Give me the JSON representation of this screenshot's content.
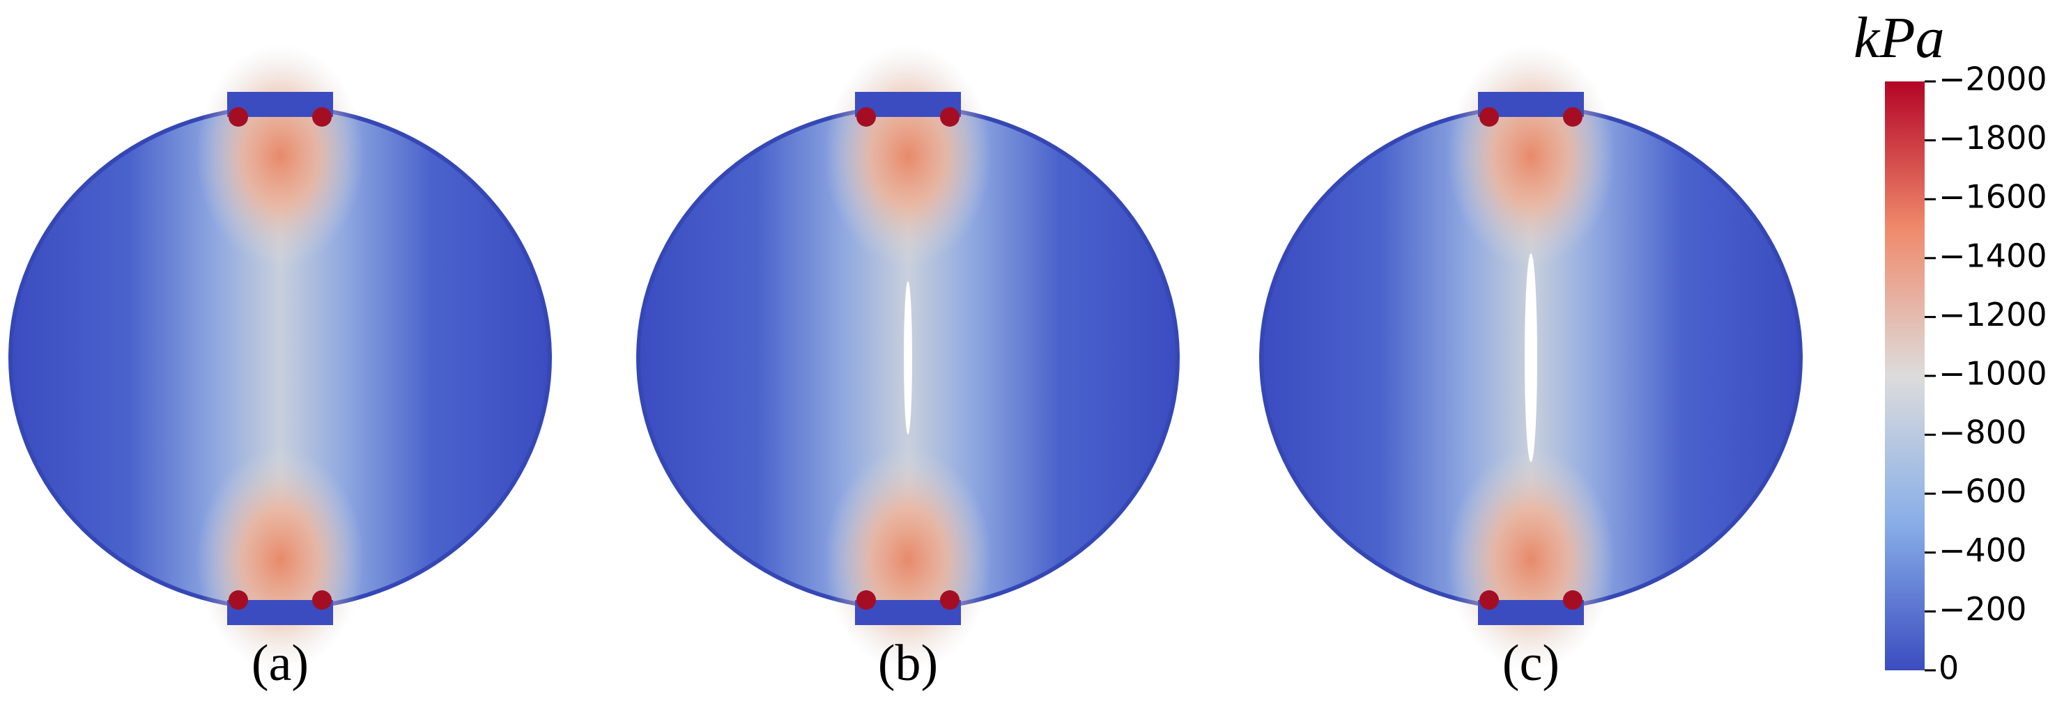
{
  "panels": [
    {
      "label": "(a)",
      "crack": false
    },
    {
      "label": "(b)",
      "crack": true
    },
    {
      "label": "(c)",
      "crack": true
    }
  ],
  "colorbar": {
    "unit": "kPa",
    "range": [
      -2000,
      0
    ],
    "ticks": [
      {
        "value": -2000,
        "label": "−2000"
      },
      {
        "value": -1800,
        "label": "−1800"
      },
      {
        "value": -1600,
        "label": "−1600"
      },
      {
        "value": -1400,
        "label": "−1400"
      },
      {
        "value": -1200,
        "label": "−1200"
      },
      {
        "value": -1000,
        "label": "−1000"
      },
      {
        "value": -800,
        "label": "−800"
      },
      {
        "value": -600,
        "label": "−600"
      },
      {
        "value": -400,
        "label": "−400"
      },
      {
        "value": -200,
        "label": "−200"
      },
      0
    ]
  }
}
